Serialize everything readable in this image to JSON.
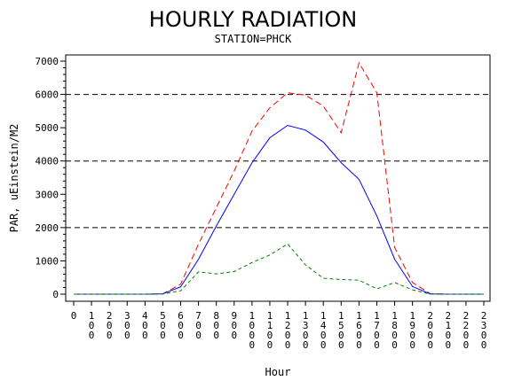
{
  "chart_data": {
    "type": "line",
    "title": "HOURLY RADIATION",
    "subtitle": "STATION=PHCK",
    "xlabel": "Hour",
    "ylabel": "PAR, uEinstein/M2",
    "ylim": [
      0,
      7000
    ],
    "yticks": [
      "0",
      "1000",
      "2000",
      "3000",
      "4000",
      "5000",
      "6000",
      "7000"
    ],
    "reference_lines": [
      2000,
      4000,
      6000
    ],
    "xticks": [
      "0",
      "100",
      "200",
      "300",
      "400",
      "500",
      "600",
      "700",
      "800",
      "900",
      "1000",
      "1100",
      "1200",
      "1300",
      "1400",
      "1500",
      "1600",
      "1700",
      "1800",
      "1900",
      "2000",
      "2100",
      "2200",
      "2300"
    ],
    "x": [
      0,
      100,
      200,
      300,
      400,
      500,
      600,
      700,
      800,
      900,
      1000,
      1100,
      1200,
      1300,
      1400,
      1500,
      1600,
      1700,
      1800,
      1900,
      2000,
      2100,
      2200,
      2300
    ],
    "series": [
      {
        "color": "#ff0000",
        "dash": "dashed-long",
        "values": [
          0,
          0,
          0,
          0,
          0,
          10,
          300,
          1500,
          2600,
          3700,
          4900,
          5600,
          6050,
          5980,
          5650,
          4850,
          6950,
          6050,
          1400,
          350,
          15,
          0,
          0,
          0
        ]
      },
      {
        "color": "#0000ff",
        "dash": "solid",
        "values": [
          0,
          0,
          0,
          0,
          0,
          10,
          220,
          1050,
          2050,
          3000,
          3950,
          4700,
          5070,
          4930,
          4570,
          3950,
          3450,
          2350,
          1050,
          230,
          8,
          0,
          0,
          0
        ]
      },
      {
        "color": "#008000",
        "dash": "dashed-short",
        "values": [
          0,
          0,
          0,
          0,
          0,
          5,
          100,
          670,
          610,
          680,
          950,
          1180,
          1510,
          880,
          480,
          440,
          420,
          160,
          350,
          130,
          5,
          0,
          0,
          0
        ]
      }
    ]
  }
}
